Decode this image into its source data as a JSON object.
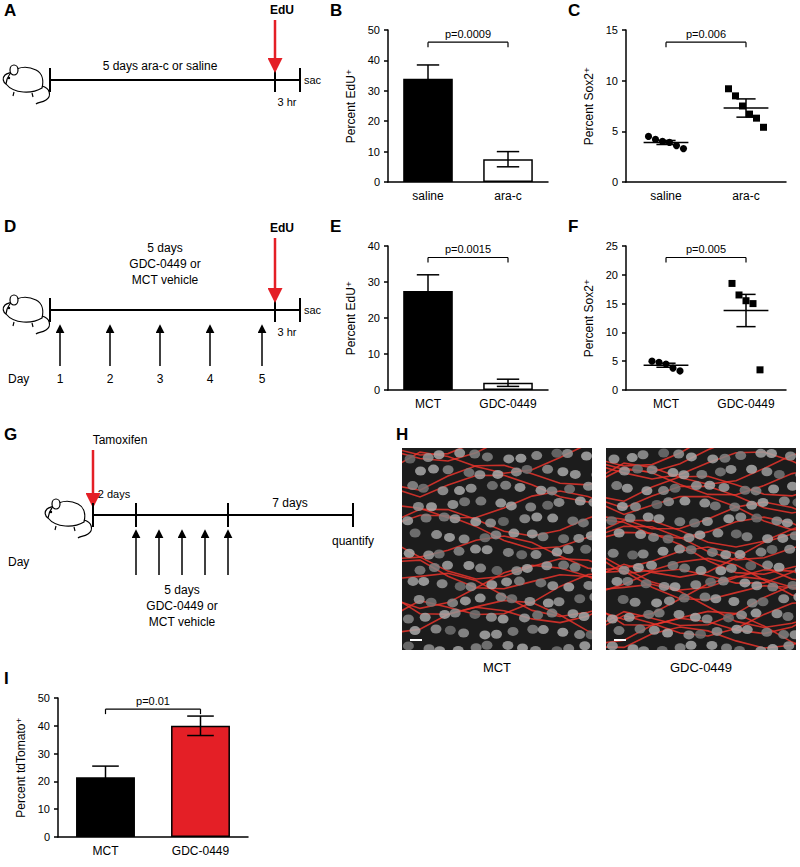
{
  "chart_data": [
    {
      "panel": "B",
      "type": "bar",
      "categories": [
        "saline",
        "ara-c"
      ],
      "values": [
        34,
        7.5
      ],
      "errors": [
        4.5,
        2.5
      ],
      "colors": [
        "#000000",
        "#ffffff"
      ],
      "y_label": "Percent EdU⁺",
      "ylim": [
        0,
        50
      ],
      "yticks": [
        0,
        10,
        20,
        30,
        40,
        50
      ],
      "annotation": "p=0.0009",
      "grid": false
    },
    {
      "panel": "C",
      "type": "scatter",
      "categories": [
        "saline",
        "ara-c"
      ],
      "values": [
        [
          4.5,
          4.2,
          4.0,
          3.9,
          3.6,
          3.3
        ],
        [
          9.2,
          8.5,
          7.5,
          6.7,
          6.3,
          5.4
        ]
      ],
      "means": [
        3.9,
        7.3
      ],
      "sems": [
        0.2,
        0.9
      ],
      "marker": [
        "circle",
        "square"
      ],
      "color": "#000000",
      "y_label": "Percent Sox2⁺",
      "ylim": [
        0,
        15
      ],
      "yticks": [
        0,
        5,
        10,
        15
      ],
      "annotation": "p=0.006",
      "grid": false
    },
    {
      "panel": "E",
      "type": "bar",
      "categories": [
        "MCT",
        "GDC-0449"
      ],
      "values": [
        27.5,
        2
      ],
      "errors": [
        4.5,
        1
      ],
      "colors": [
        "#000000",
        "#ffffff"
      ],
      "y_label": "Percent EdU⁺",
      "ylim": [
        0,
        40
      ],
      "yticks": [
        0,
        10,
        20,
        30,
        40
      ],
      "annotation": "p=0.0015",
      "grid": false
    },
    {
      "panel": "F",
      "type": "scatter",
      "categories": [
        "MCT",
        "GDC-0449"
      ],
      "values": [
        [
          5.0,
          4.8,
          4.5,
          3.8,
          3.3
        ],
        [
          18.5,
          16.5,
          15.5,
          15.0,
          3.5
        ]
      ],
      "means": [
        4.3,
        13.8
      ],
      "sems": [
        0.35,
        2.8
      ],
      "marker": [
        "circle",
        "square"
      ],
      "color": "#000000",
      "y_label": "Percent Sox2⁺",
      "ylim": [
        0,
        25
      ],
      "yticks": [
        0,
        5,
        10,
        15,
        20,
        25
      ],
      "annotation": "p=0.005",
      "grid": false
    },
    {
      "panel": "I",
      "type": "bar",
      "categories": [
        "MCT",
        "GDC-0449"
      ],
      "values": [
        21.5,
        40
      ],
      "errors": [
        4,
        3.5
      ],
      "colors": [
        "#000000",
        "#e41f26"
      ],
      "y_label": "Percent tdTomato⁺",
      "ylim": [
        0,
        50
      ],
      "yticks": [
        0,
        10,
        20,
        30,
        40,
        50
      ],
      "annotation": "p=0.01",
      "grid": false
    }
  ],
  "diagrams": {
    "A": {
      "label": "A",
      "treatment": "5 days ara-c or saline",
      "pulse": "EdU",
      "chase": "3 hr",
      "end": "sac"
    },
    "D": {
      "label": "D",
      "treatment": [
        "5 days",
        "GDC-0449 or",
        "MCT vehicle"
      ],
      "pulse": "EdU",
      "chase": "3 hr",
      "end": "sac",
      "day_label": "Day",
      "days": [
        1,
        2,
        3,
        4,
        5
      ]
    },
    "G": {
      "label": "G",
      "induction": "Tamoxifen",
      "gap": "2 days",
      "treatment": [
        "5 days",
        "GDC-0449 or",
        "MCT vehicle"
      ],
      "chase": "7 days",
      "end": "quantify",
      "day_label": "Day"
    },
    "H": {
      "label": "H",
      "captions": [
        "MCT",
        "GDC-0449"
      ]
    }
  }
}
